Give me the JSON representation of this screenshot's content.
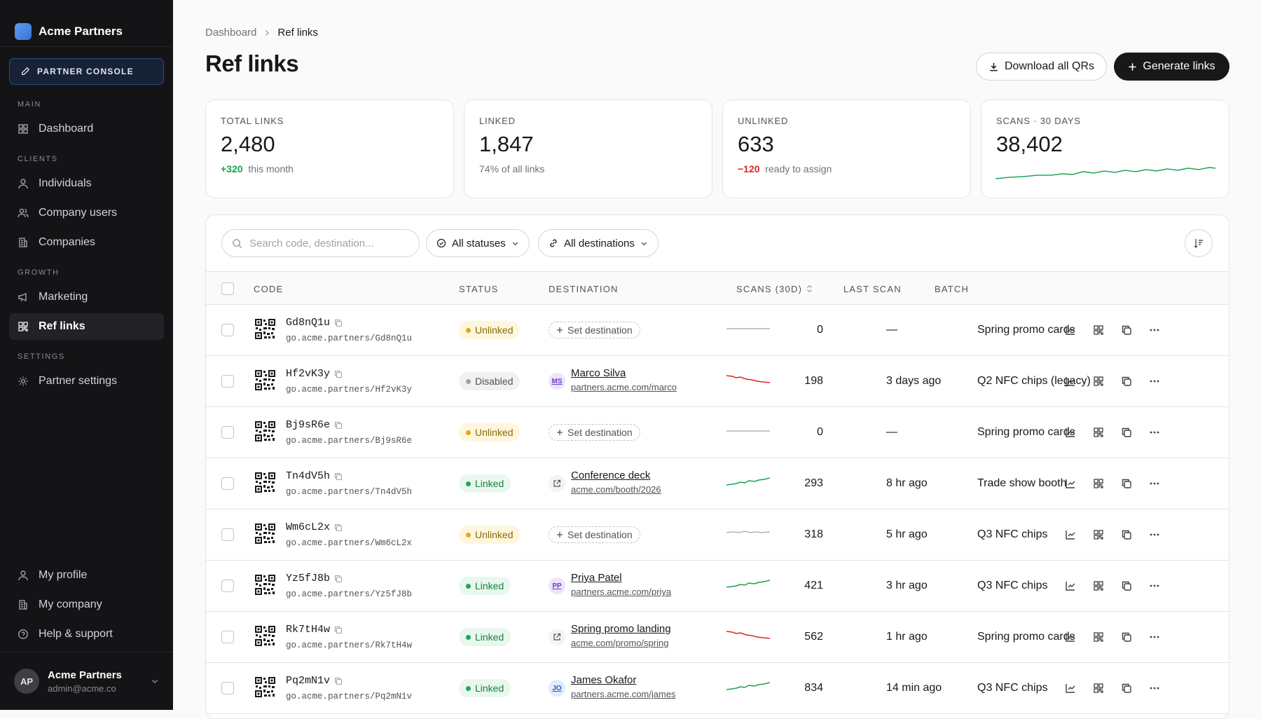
{
  "app": {
    "name": "Acme Partners",
    "console_label": "PARTNER CONSOLE"
  },
  "sidebar": {
    "sections": [
      {
        "title": "MAIN",
        "items": [
          {
            "label": "Dashboard",
            "icon": "grid-icon"
          }
        ]
      },
      {
        "title": "CLIENTS",
        "items": [
          {
            "label": "Individuals",
            "icon": "user-icon"
          },
          {
            "label": "Company users",
            "icon": "users-icon"
          },
          {
            "label": "Companies",
            "icon": "building-icon"
          }
        ]
      },
      {
        "title": "GROWTH",
        "items": [
          {
            "label": "Marketing",
            "icon": "megaphone-icon"
          },
          {
            "label": "Ref links",
            "icon": "qr-icon",
            "active": true
          }
        ]
      },
      {
        "title": "SETTINGS",
        "items": [
          {
            "label": "Partner settings",
            "icon": "gear-icon"
          }
        ]
      }
    ],
    "bottom_items": [
      {
        "label": "My profile",
        "icon": "user-icon"
      },
      {
        "label": "My company",
        "icon": "building-icon"
      },
      {
        "label": "Help & support",
        "icon": "help-icon"
      }
    ],
    "user": {
      "initials": "AP",
      "name": "Acme Partners",
      "email": "admin@acme.co"
    }
  },
  "breadcrumb": {
    "parent": "Dashboard",
    "current": "Ref links"
  },
  "page": {
    "title": "Ref links",
    "download_label": "Download all QRs",
    "generate_label": "Generate links"
  },
  "stats": [
    {
      "label": "TOTAL LINKS",
      "value": "2,480",
      "delta": "+320",
      "delta_type": "pos",
      "sub": "this month"
    },
    {
      "label": "LINKED",
      "value": "1,847",
      "delta": "",
      "delta_type": "",
      "sub": "74% of all links"
    },
    {
      "label": "UNLINKED",
      "value": "633",
      "delta": "−120",
      "delta_type": "neg",
      "sub": "ready to assign"
    },
    {
      "label": "SCANS · 30 DAYS",
      "value": "38,402",
      "delta": "",
      "delta_type": "",
      "sub": ""
    }
  ],
  "scans_trend_color": "#22a55a",
  "filters": {
    "search_placeholder": "Search code, destination...",
    "status": "All statuses",
    "destination": "All destinations"
  },
  "table": {
    "columns": {
      "code": "CODE",
      "status": "STATUS",
      "destination": "DESTINATION",
      "scans": "SCANS (30D)",
      "last": "LAST SCAN",
      "batch": "BATCH"
    },
    "rows": [
      {
        "code": "Gd8nQ1u",
        "url": "go.acme.partners/Gd8nQ1u",
        "status": "Unlinked",
        "dest_type": "none",
        "dest_action": "Set destination",
        "trend": "flat",
        "scans": "0",
        "last": "—",
        "batch": "Spring promo cards"
      },
      {
        "code": "Hf2vK3y",
        "url": "go.acme.partners/Hf2vK3y",
        "status": "Disabled",
        "dest_type": "person",
        "dest_initials": "MS",
        "dest_name": "Marco Silva",
        "dest_sub": "partners.acme.com/marco",
        "trend": "down",
        "scans": "198",
        "last": "3 days ago",
        "batch": "Q2 NFC chips (legacy)"
      },
      {
        "code": "Bj9sR6e",
        "url": "go.acme.partners/Bj9sR6e",
        "status": "Unlinked",
        "dest_type": "none",
        "dest_action": "Set destination",
        "trend": "flat",
        "scans": "0",
        "last": "—",
        "batch": "Spring promo cards"
      },
      {
        "code": "Tn4dV5h",
        "url": "go.acme.partners/Tn4dV5h",
        "status": "Linked",
        "dest_type": "external",
        "dest_name": "Conference deck",
        "dest_sub": "acme.com/booth/2026",
        "trend": "up",
        "scans": "293",
        "last": "8 hr ago",
        "batch": "Trade show booth"
      },
      {
        "code": "Wm6cL2x",
        "url": "go.acme.partners/Wm6cL2x",
        "status": "Unlinked",
        "dest_type": "none",
        "dest_action": "Set destination",
        "trend": "gray",
        "scans": "318",
        "last": "5 hr ago",
        "batch": "Q3 NFC chips"
      },
      {
        "code": "Yz5fJ8b",
        "url": "go.acme.partners/Yz5fJ8b",
        "status": "Linked",
        "dest_type": "person",
        "dest_initials": "PP",
        "dest_name": "Priya Patel",
        "dest_sub": "partners.acme.com/priya",
        "trend": "up",
        "scans": "421",
        "last": "3 hr ago",
        "batch": "Q3 NFC chips"
      },
      {
        "code": "Rk7tH4w",
        "url": "go.acme.partners/Rk7tH4w",
        "status": "Linked",
        "dest_type": "external",
        "dest_name": "Spring promo landing",
        "dest_sub": "acme.com/promo/spring",
        "trend": "down",
        "scans": "562",
        "last": "1 hr ago",
        "batch": "Spring promo cards"
      },
      {
        "code": "Pq2mN1v",
        "url": "go.acme.partners/Pq2mN1v",
        "status": "Linked",
        "dest_type": "person",
        "dest_initials": "JO",
        "dest_name": "James Okafor",
        "dest_sub": "partners.acme.com/james",
        "trend": "up",
        "scans": "834",
        "last": "14 min ago",
        "batch": "Q3 NFC chips"
      }
    ]
  }
}
